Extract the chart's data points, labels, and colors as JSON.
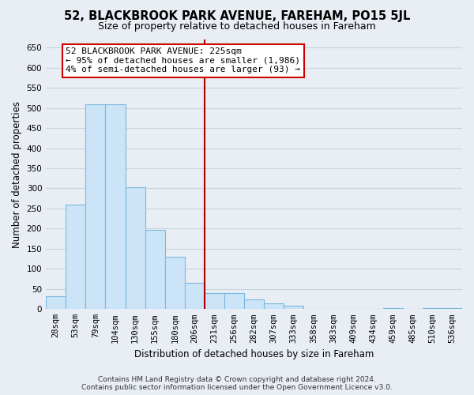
{
  "title": "52, BLACKBROOK PARK AVENUE, FAREHAM, PO15 5JL",
  "subtitle": "Size of property relative to detached houses in Fareham",
  "xlabel": "Distribution of detached houses by size in Fareham",
  "ylabel": "Number of detached properties",
  "bar_labels": [
    "28sqm",
    "53sqm",
    "79sqm",
    "104sqm",
    "130sqm",
    "155sqm",
    "180sqm",
    "206sqm",
    "231sqm",
    "256sqm",
    "282sqm",
    "307sqm",
    "333sqm",
    "358sqm",
    "383sqm",
    "409sqm",
    "434sqm",
    "459sqm",
    "485sqm",
    "510sqm",
    "536sqm"
  ],
  "bar_values": [
    32,
    260,
    510,
    510,
    302,
    197,
    130,
    65,
    40,
    40,
    24,
    15,
    8,
    0,
    0,
    0,
    0,
    2,
    0,
    2,
    2
  ],
  "bar_fill_color": "#cce4f7",
  "bar_edge_color": "#7ab8e0",
  "vline_x_index": 8,
  "vline_color": "#aa0000",
  "annotation_text": "52 BLACKBROOK PARK AVENUE: 225sqm\n← 95% of detached houses are smaller (1,986)\n4% of semi-detached houses are larger (93) →",
  "annotation_box_color": "white",
  "annotation_box_edge": "#cc0000",
  "ylim": [
    0,
    670
  ],
  "yticks": [
    0,
    50,
    100,
    150,
    200,
    250,
    300,
    350,
    400,
    450,
    500,
    550,
    600,
    650
  ],
  "footer_line1": "Contains HM Land Registry data © Crown copyright and database right 2024.",
  "footer_line2": "Contains public sector information licensed under the Open Government Licence v3.0.",
  "background_color": "#e8eef4",
  "grid_color": "#c8d4dc",
  "title_fontsize": 10.5,
  "subtitle_fontsize": 9,
  "ylabel_fontsize": 8.5,
  "xlabel_fontsize": 8.5,
  "tick_fontsize": 7.5,
  "annot_fontsize": 8
}
